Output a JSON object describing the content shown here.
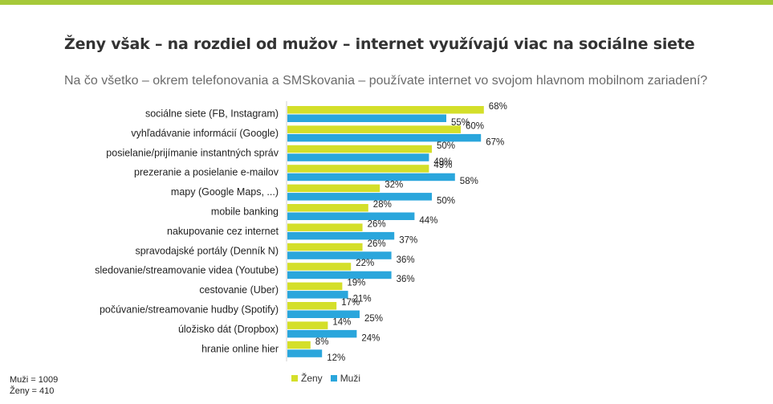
{
  "title": "Ženy však – na rozdiel od mužov – internet využívajú viac na sociálne siete",
  "subtitle": "Na čo všetko – okrem telefonovania a SMSkovania – používate internet vo svojom hlavnom mobilnom zariadení?",
  "colors": {
    "accent_bar": "#a6c93a",
    "zeny": "#d4df2a",
    "muzi": "#2aa6dc"
  },
  "notes": [
    "Muži = 1009",
    "Ženy = 410"
  ],
  "chart_data": {
    "type": "bar",
    "orientation": "horizontal",
    "categories": [
      "sociálne siete (FB, Instagram)",
      "vyhľadávanie informácií (Google)",
      "posielanie/prijímanie instantných správ",
      "prezeranie a posielanie e-mailov",
      "mapy (Google Maps, ...)",
      "mobile banking",
      "nakupovanie cez internet",
      "spravodajské portály (Denník N)",
      "sledovanie/streamovanie videa (Youtube)",
      "cestovanie (Uber)",
      "počúvanie/streamovanie hudby (Spotify)",
      "úložisko dát (Dropbox)",
      "hranie online hier"
    ],
    "series": [
      {
        "name": "Ženy",
        "values": [
          68,
          60,
          50,
          49,
          32,
          28,
          26,
          26,
          22,
          19,
          17,
          14,
          8
        ],
        "labels": [
          "68%",
          "60%",
          "50%",
          "49%",
          "32%",
          "28%",
          "26%",
          "26%",
          "22%",
          "19%",
          "17%",
          "14%",
          "8%"
        ]
      },
      {
        "name": "Muži",
        "values": [
          55,
          67,
          49,
          58,
          50,
          44,
          37,
          36,
          36,
          21,
          25,
          24,
          12
        ],
        "labels": [
          "55%",
          "67%",
          "49%",
          "58%",
          "50%",
          "44%",
          "37%",
          "36%",
          "36%",
          "21%",
          "25%",
          "24%",
          "12%"
        ]
      }
    ],
    "legend_position": "bottom-left",
    "grid": false
  }
}
